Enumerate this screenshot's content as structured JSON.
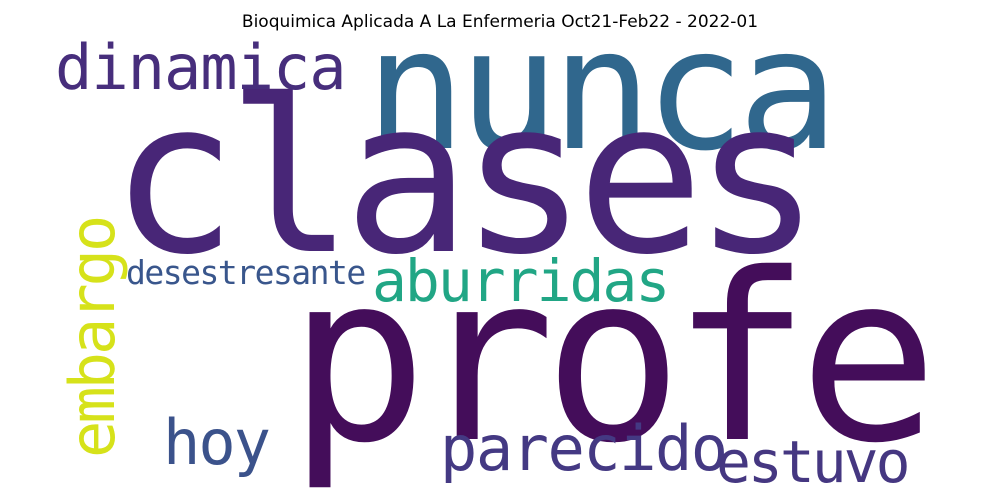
{
  "title": "Bioquimica Aplicada A La Enfermeria Oct21-Feb22 - 2022-01",
  "words": [
    {
      "text": "nunca",
      "color": "#30678d"
    },
    {
      "text": "clases",
      "color": "#482677"
    },
    {
      "text": "profe",
      "color": "#440d5a"
    },
    {
      "text": "dinamica",
      "color": "#472e7c"
    },
    {
      "text": "embargo",
      "color": "#d6e21a"
    },
    {
      "text": "desestresante",
      "color": "#39568c"
    },
    {
      "text": "aburridas",
      "color": "#21a685"
    },
    {
      "text": "hoy",
      "color": "#3b528b"
    },
    {
      "text": "parecido",
      "color": "#443983"
    },
    {
      "text": "estuvo",
      "color": "#453781"
    }
  ]
}
